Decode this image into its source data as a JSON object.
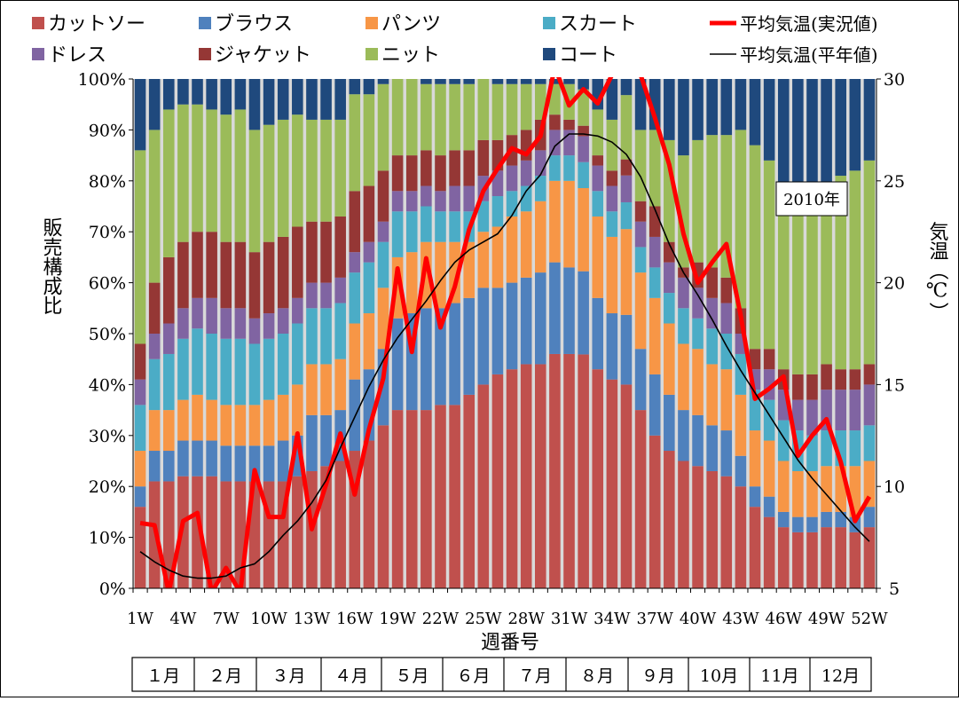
{
  "chart_data": {
    "type": "bar",
    "stacked": true,
    "percent_stacked": true,
    "ylabel": "販売構成比",
    "y2label": "気温（℃）",
    "xlabel": "週番号",
    "annotation": "2010年",
    "ylim": [
      0,
      100
    ],
    "y2lim": [
      5,
      30
    ],
    "y_ticks": [
      "0%",
      "10%",
      "20%",
      "30%",
      "40%",
      "50%",
      "60%",
      "70%",
      "80%",
      "90%",
      "100%"
    ],
    "y2_ticks": [
      "5",
      "10",
      "15",
      "20",
      "25",
      "30"
    ],
    "x": [
      "1W",
      "2W",
      "3W",
      "4W",
      "5W",
      "6W",
      "7W",
      "8W",
      "9W",
      "10W",
      "11W",
      "12W",
      "13W",
      "14W",
      "15W",
      "16W",
      "17W",
      "18W",
      "19W",
      "20W",
      "21W",
      "22W",
      "23W",
      "24W",
      "25W",
      "26W",
      "27W",
      "28W",
      "29W",
      "30W",
      "31W",
      "32W",
      "33W",
      "34W",
      "35W",
      "36W",
      "37W",
      "38W",
      "39W",
      "40W",
      "41W",
      "42W",
      "43W",
      "44W",
      "45W",
      "46W",
      "47W",
      "48W",
      "49W",
      "50W",
      "51W",
      "52W"
    ],
    "x_tick_labels": [
      "1W",
      "4W",
      "7W",
      "10W",
      "13W",
      "16W",
      "19W",
      "22W",
      "25W",
      "28W",
      "31W",
      "34W",
      "37W",
      "40W",
      "43W",
      "46W",
      "49W",
      "52W"
    ],
    "months": [
      "１月",
      "２月",
      "３月",
      "４月",
      "５月",
      "６月",
      "７月",
      "８月",
      "９月",
      "10月",
      "11月",
      "12月"
    ],
    "legend_position": "top",
    "colors": {
      "カットソー": "#c0504d",
      "ブラウス": "#4f81bd",
      "パンツ": "#f79646",
      "スカート": "#4bacc6",
      "ドレス": "#8064a2",
      "ジャケット": "#953735",
      "ニット": "#9bbb59",
      "コート": "#1f497d",
      "actual_line": "#ff0000",
      "normal_line": "#000000",
      "gap": "#d9d9d9"
    },
    "series": [
      {
        "name": "カットソー",
        "values": [
          16,
          21,
          21,
          22,
          22,
          22,
          21,
          21,
          21,
          21,
          21,
          22,
          23,
          24,
          25,
          27,
          29,
          32,
          35,
          35,
          35,
          36,
          36,
          38,
          40,
          42,
          43,
          44,
          44,
          46,
          46,
          45,
          43,
          41,
          38,
          35,
          30,
          27,
          25,
          24,
          23,
          22,
          20,
          16,
          14,
          12,
          11,
          11,
          12,
          12,
          11,
          12
        ]
      },
      {
        "name": "ブラウス",
        "values": [
          4,
          6,
          6,
          7,
          7,
          7,
          7,
          7,
          7,
          7,
          8,
          8,
          11,
          10,
          10,
          14,
          14,
          15,
          18,
          19,
          20,
          19,
          20,
          19,
          19,
          17,
          17,
          17,
          18,
          18,
          17,
          16,
          14,
          13,
          13,
          12,
          12,
          11,
          10,
          10,
          9,
          9,
          6,
          4,
          4,
          3,
          3,
          3,
          3,
          3,
          3,
          4
        ]
      },
      {
        "name": "パンツ",
        "values": [
          7,
          8,
          8,
          8,
          9,
          8,
          8,
          8,
          8,
          9,
          9,
          10,
          10,
          10,
          10,
          11,
          11,
          12,
          12,
          12,
          13,
          13,
          12,
          11,
          11,
          12,
          13,
          13,
          14,
          16,
          17,
          16,
          16,
          15,
          16,
          15,
          15,
          14,
          13,
          13,
          12,
          12,
          12,
          11,
          11,
          10,
          9,
          9,
          9,
          9,
          10,
          9
        ]
      },
      {
        "name": "スカート",
        "values": [
          9,
          10,
          11,
          12,
          13,
          13,
          13,
          13,
          12,
          12,
          12,
          12,
          11,
          11,
          11,
          10,
          10,
          9,
          9,
          8,
          7,
          6,
          6,
          6,
          6,
          6,
          5,
          5,
          5,
          5,
          5,
          5,
          5,
          5,
          5,
          5,
          6,
          6,
          7,
          6,
          7,
          7,
          8,
          8,
          8,
          8,
          8,
          7,
          7,
          7,
          7,
          7
        ]
      },
      {
        "name": "ドレス",
        "values": [
          5,
          5,
          6,
          6,
          6,
          7,
          6,
          6,
          5,
          5,
          5,
          5,
          5,
          5,
          5,
          4,
          4,
          4,
          4,
          4,
          4,
          4,
          5,
          5,
          5,
          5,
          5,
          5,
          5,
          5,
          5,
          5,
          5,
          5,
          5,
          5,
          6,
          6,
          6,
          6,
          6,
          6,
          4,
          4,
          6,
          6,
          6,
          7,
          8,
          8,
          8,
          8
        ]
      },
      {
        "name": "ジャケット",
        "values": [
          7,
          10,
          13,
          13,
          13,
          13,
          13,
          13,
          13,
          14,
          14,
          14,
          12,
          12,
          12,
          12,
          11,
          10,
          7,
          7,
          7,
          7,
          7,
          7,
          7,
          6,
          6,
          6,
          6,
          3,
          2,
          2,
          2,
          3,
          3,
          4,
          6,
          4,
          2,
          5,
          6,
          5,
          5,
          4,
          4,
          4,
          5,
          5,
          5,
          4,
          4,
          4
        ]
      },
      {
        "name": "ニット",
        "values": [
          38,
          30,
          29,
          27,
          25,
          24,
          25,
          26,
          24,
          23,
          23,
          22,
          20,
          20,
          19,
          19,
          18,
          17,
          15,
          15,
          13,
          14,
          13,
          13,
          12,
          11,
          10,
          9,
          7,
          6,
          7,
          7,
          9,
          10,
          12,
          14,
          15,
          20,
          22,
          24,
          26,
          28,
          35,
          40,
          37,
          35,
          34,
          34,
          35,
          38,
          39,
          40
        ]
      },
      {
        "name": "コート",
        "values": [
          14,
          10,
          6,
          5,
          5,
          6,
          7,
          6,
          10,
          9,
          8,
          7,
          8,
          8,
          8,
          3,
          3,
          1,
          0,
          0,
          1,
          1,
          1,
          1,
          0,
          1,
          1,
          1,
          1,
          1,
          1,
          2,
          6,
          8,
          3,
          10,
          10,
          12,
          15,
          12,
          11,
          11,
          10,
          13,
          16,
          22,
          24,
          24,
          21,
          19,
          18,
          16
        ]
      }
    ],
    "lines": [
      {
        "name": "平均気温(実況値)",
        "values": [
          8.2,
          8.1,
          4.8,
          8.3,
          8.7,
          4.8,
          6,
          4.8,
          10.8,
          8.5,
          8.5,
          12.6,
          7.9,
          10.1,
          12.6,
          9.6,
          12.8,
          15.3,
          20.7,
          16.6,
          21.2,
          17.8,
          19.8,
          22.6,
          24.5,
          25.6,
          26.6,
          26.3,
          27.2,
          30.6,
          28.7,
          29.5,
          28.8,
          30.2,
          30.2,
          30.2,
          28.1,
          25.8,
          22.4,
          20,
          21,
          21.9,
          18.4,
          14.3,
          14.8,
          15.4,
          11.5,
          12.5,
          13.3,
          11.2,
          8.3,
          9.5
        ]
      },
      {
        "name": "平均気温(平年値)",
        "values": [
          6.8,
          6.3,
          5.9,
          5.6,
          5.5,
          5.5,
          5.6,
          6,
          6.2,
          6.8,
          7.6,
          8.3,
          9.2,
          10.3,
          11.9,
          13.4,
          14.9,
          16.2,
          17.3,
          18.2,
          19.1,
          20.1,
          21,
          21.6,
          22,
          22.4,
          23.3,
          24.5,
          25.3,
          26.7,
          27.3,
          27.3,
          27.2,
          26.9,
          26.3,
          25.2,
          23.6,
          21.9,
          20.5,
          19.4,
          18.2,
          16.9,
          15.7,
          14.6,
          13.5,
          12.4,
          11.3,
          10.4,
          9.6,
          8.8,
          8,
          7.3
        ]
      }
    ]
  }
}
